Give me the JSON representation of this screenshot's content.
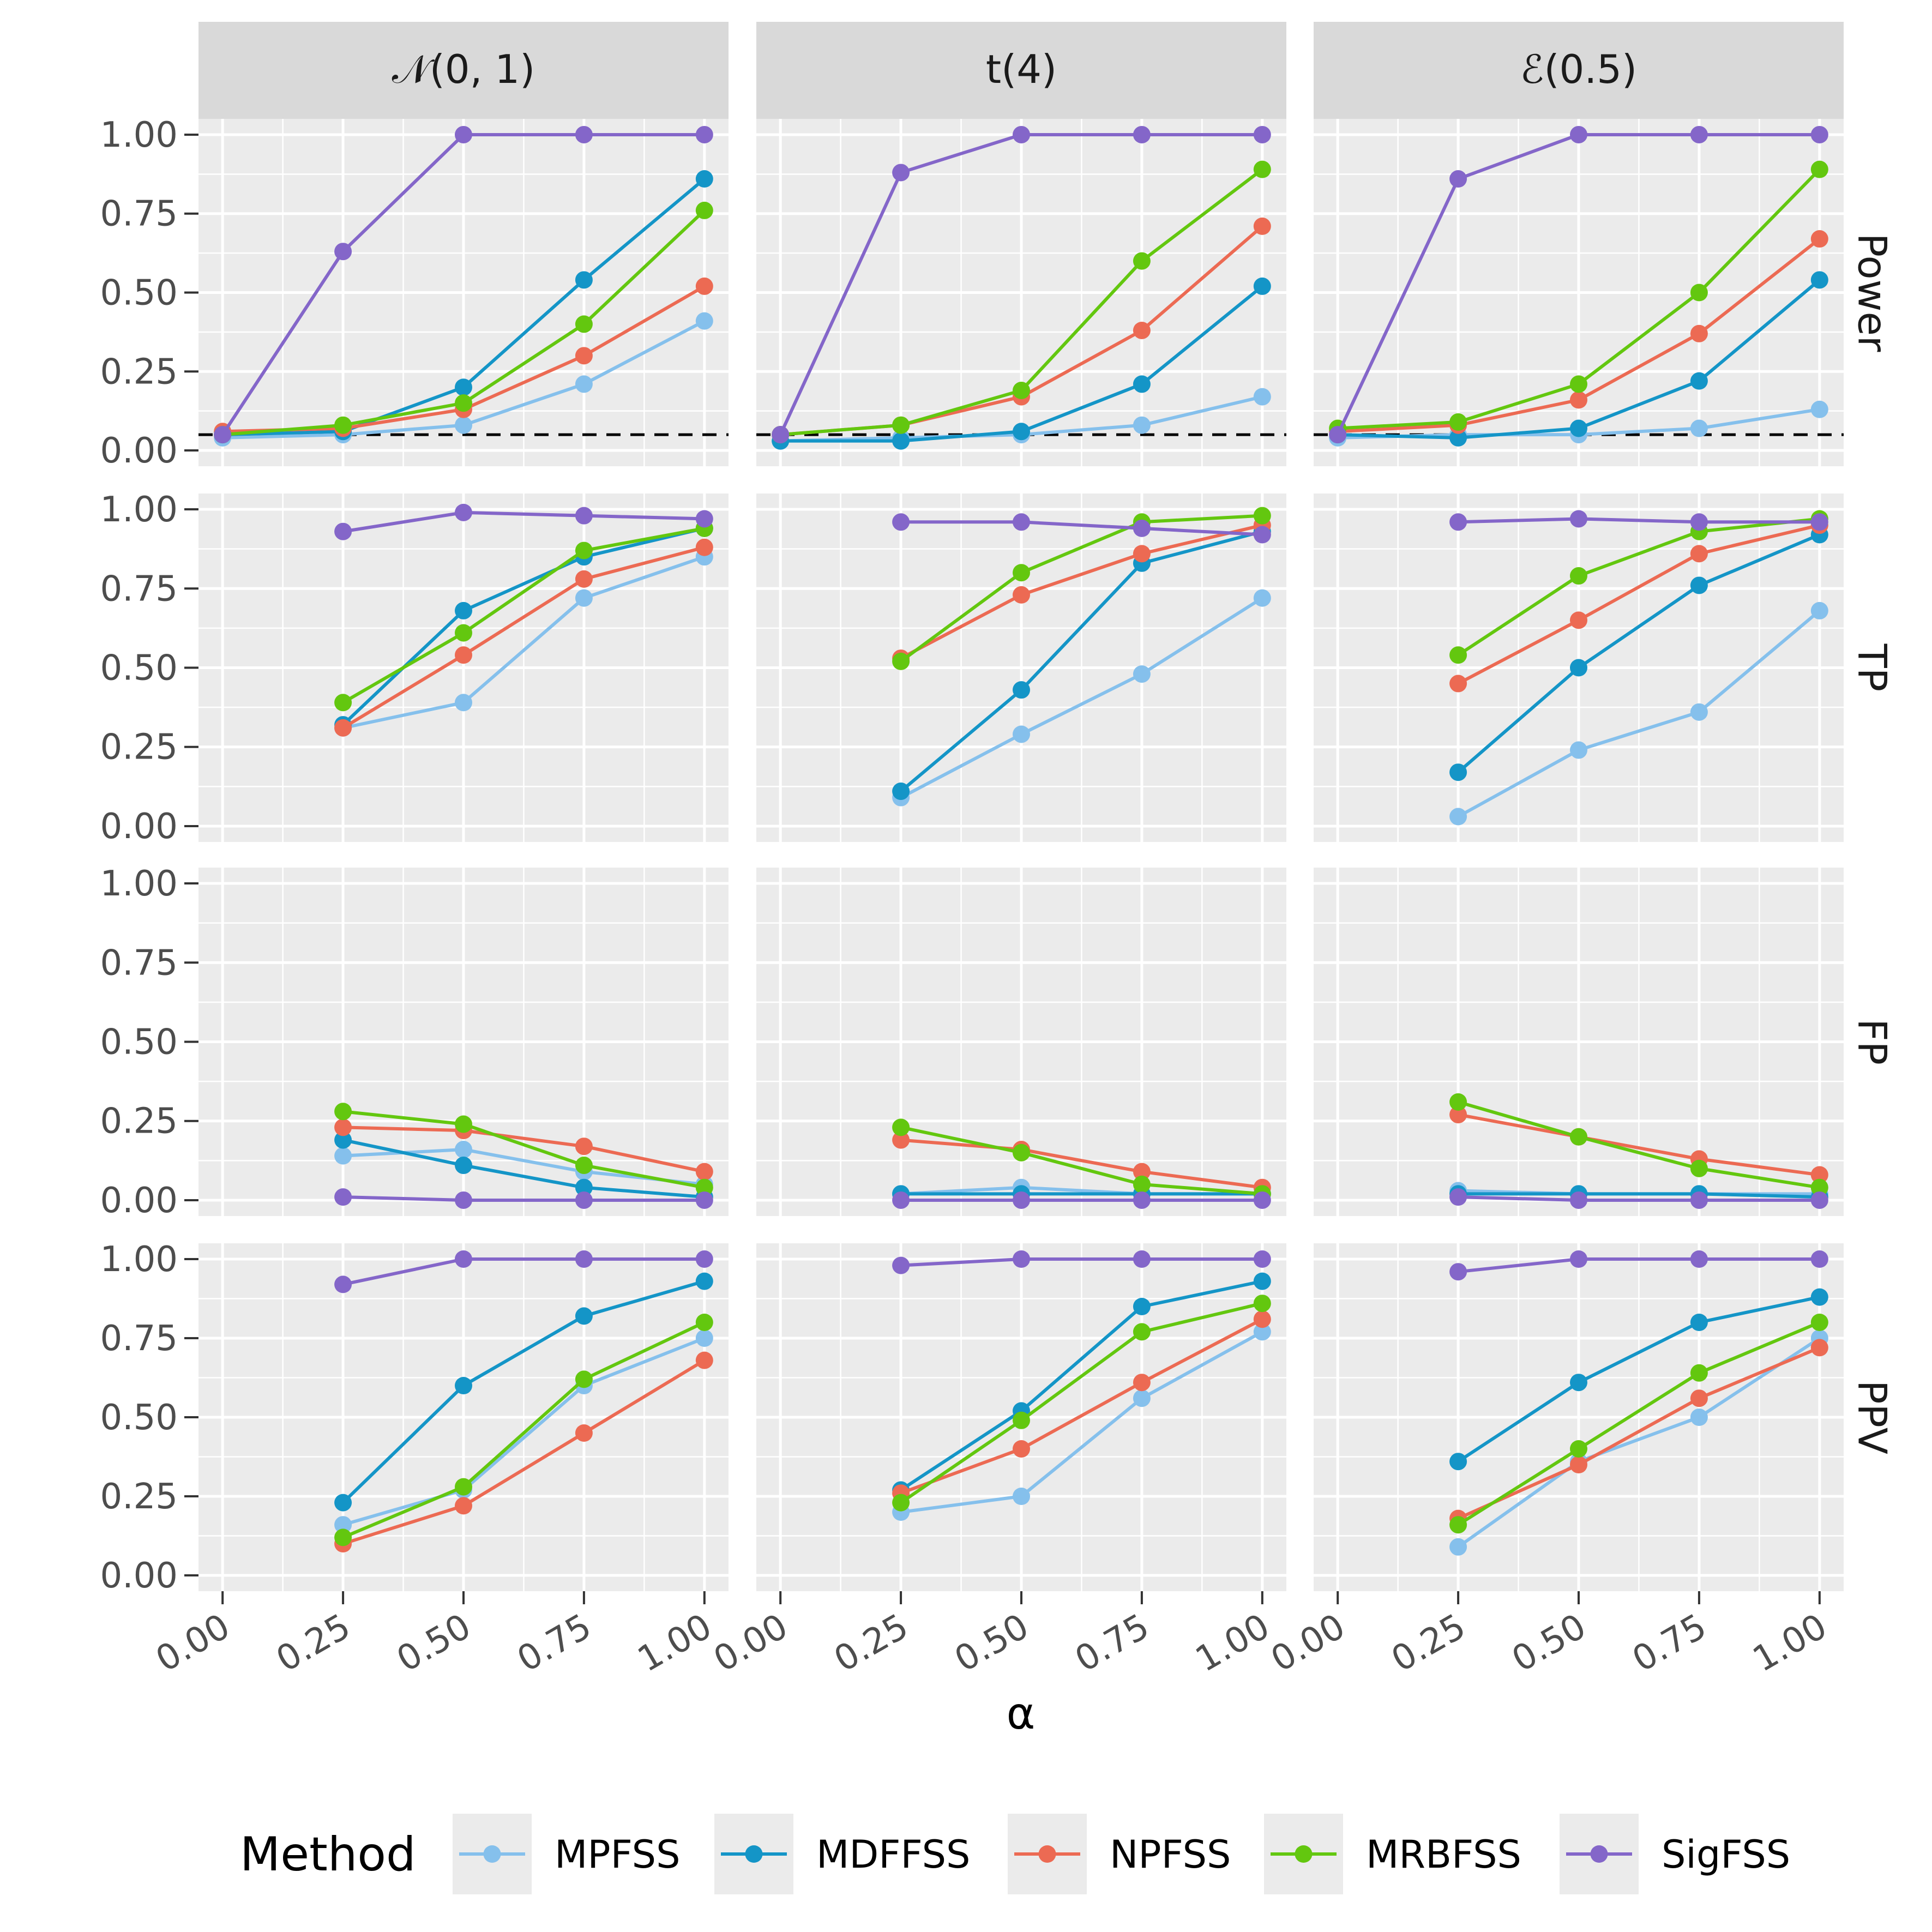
{
  "chart_data": {
    "type": "line",
    "xlabel": "α",
    "x": [
      0,
      0.25,
      0.5,
      0.75,
      1
    ],
    "x_tick_labels": [
      "0.00",
      "0.25",
      "0.50",
      "0.75",
      "1.00"
    ],
    "y_tick_labels": [
      "0.00",
      "0.25",
      "0.50",
      "0.75",
      "1.00"
    ],
    "xlim": [
      -0.05,
      1.05
    ],
    "ylim": [
      -0.05,
      1.05
    ],
    "grid": true,
    "legend_position": "bottom",
    "legend_title": "Method",
    "reference_line": {
      "metric": "Power",
      "y": 0.05,
      "style": "dashed",
      "color": "#000000"
    },
    "columns": [
      "𝒩(0, 1)",
      "t(4)",
      "ℰ(0.5)"
    ],
    "rows": [
      "Power",
      "TP",
      "FP",
      "PPV"
    ],
    "methods": [
      {
        "name": "MPFSS",
        "color": "#85C0EC"
      },
      {
        "name": "MDFFSS",
        "color": "#1495C7"
      },
      {
        "name": "NPFSS",
        "color": "#EC6A53"
      },
      {
        "name": "MRBFSS",
        "color": "#63C70F"
      },
      {
        "name": "SigFSS",
        "color": "#8466C9"
      }
    ],
    "panels": [
      {
        "column": 0,
        "row": "Power",
        "series": [
          {
            "name": "MPFSS",
            "values": [
              0.04,
              0.05,
              0.08,
              0.21,
              0.41
            ]
          },
          {
            "name": "MDFFSS",
            "values": [
              0.05,
              0.06,
              0.2,
              0.54,
              0.86
            ]
          },
          {
            "name": "NPFSS",
            "values": [
              0.06,
              0.07,
              0.13,
              0.3,
              0.52
            ]
          },
          {
            "name": "MRBFSS",
            "values": [
              0.05,
              0.08,
              0.15,
              0.4,
              0.76
            ]
          },
          {
            "name": "SigFSS",
            "values": [
              0.05,
              0.63,
              1.0,
              1.0,
              1.0
            ]
          }
        ]
      },
      {
        "column": 1,
        "row": "Power",
        "series": [
          {
            "name": "MPFSS",
            "values": [
              0.03,
              0.04,
              0.05,
              0.08,
              0.17
            ]
          },
          {
            "name": "MDFFSS",
            "values": [
              0.03,
              0.03,
              0.06,
              0.21,
              0.52
            ]
          },
          {
            "name": "NPFSS",
            "values": [
              0.05,
              0.08,
              0.17,
              0.38,
              0.71
            ]
          },
          {
            "name": "MRBFSS",
            "values": [
              0.05,
              0.08,
              0.19,
              0.6,
              0.89
            ]
          },
          {
            "name": "SigFSS",
            "values": [
              0.05,
              0.88,
              1.0,
              1.0,
              1.0
            ]
          }
        ]
      },
      {
        "column": 2,
        "row": "Power",
        "series": [
          {
            "name": "MPFSS",
            "values": [
              0.04,
              0.05,
              0.05,
              0.07,
              0.13
            ]
          },
          {
            "name": "MDFFSS",
            "values": [
              0.05,
              0.04,
              0.07,
              0.22,
              0.54
            ]
          },
          {
            "name": "NPFSS",
            "values": [
              0.06,
              0.08,
              0.16,
              0.37,
              0.67
            ]
          },
          {
            "name": "MRBFSS",
            "values": [
              0.07,
              0.09,
              0.21,
              0.5,
              0.89
            ]
          },
          {
            "name": "SigFSS",
            "values": [
              0.05,
              0.86,
              1.0,
              1.0,
              1.0
            ]
          }
        ]
      },
      {
        "column": 0,
        "row": "TP",
        "series": [
          {
            "name": "MPFSS",
            "values": [
              null,
              0.31,
              0.39,
              0.72,
              0.85
            ]
          },
          {
            "name": "MDFFSS",
            "values": [
              null,
              0.32,
              0.68,
              0.85,
              0.94
            ]
          },
          {
            "name": "NPFSS",
            "values": [
              null,
              0.31,
              0.54,
              0.78,
              0.88
            ]
          },
          {
            "name": "MRBFSS",
            "values": [
              null,
              0.39,
              0.61,
              0.87,
              0.94
            ]
          },
          {
            "name": "SigFSS",
            "values": [
              null,
              0.93,
              0.99,
              0.98,
              0.97
            ]
          }
        ]
      },
      {
        "column": 1,
        "row": "TP",
        "series": [
          {
            "name": "MPFSS",
            "values": [
              null,
              0.09,
              0.29,
              0.48,
              0.72
            ]
          },
          {
            "name": "MDFFSS",
            "values": [
              null,
              0.11,
              0.43,
              0.83,
              0.93
            ]
          },
          {
            "name": "NPFSS",
            "values": [
              null,
              0.53,
              0.73,
              0.86,
              0.95
            ]
          },
          {
            "name": "MRBFSS",
            "values": [
              null,
              0.52,
              0.8,
              0.96,
              0.98
            ]
          },
          {
            "name": "SigFSS",
            "values": [
              null,
              0.96,
              0.96,
              0.94,
              0.92
            ]
          }
        ]
      },
      {
        "column": 2,
        "row": "TP",
        "series": [
          {
            "name": "MPFSS",
            "values": [
              null,
              0.03,
              0.24,
              0.36,
              0.68
            ]
          },
          {
            "name": "MDFFSS",
            "values": [
              null,
              0.17,
              0.5,
              0.76,
              0.92
            ]
          },
          {
            "name": "NPFSS",
            "values": [
              null,
              0.45,
              0.65,
              0.86,
              0.95
            ]
          },
          {
            "name": "MRBFSS",
            "values": [
              null,
              0.54,
              0.79,
              0.93,
              0.97
            ]
          },
          {
            "name": "SigFSS",
            "values": [
              null,
              0.96,
              0.97,
              0.96,
              0.96
            ]
          }
        ]
      },
      {
        "column": 0,
        "row": "FP",
        "series": [
          {
            "name": "MPFSS",
            "values": [
              null,
              0.14,
              0.16,
              0.09,
              0.05
            ]
          },
          {
            "name": "MDFFSS",
            "values": [
              null,
              0.19,
              0.11,
              0.04,
              0.01
            ]
          },
          {
            "name": "NPFSS",
            "values": [
              null,
              0.23,
              0.22,
              0.17,
              0.09
            ]
          },
          {
            "name": "MRBFSS",
            "values": [
              null,
              0.28,
              0.24,
              0.11,
              0.04
            ]
          },
          {
            "name": "SigFSS",
            "values": [
              null,
              0.01,
              0.0,
              0.0,
              0.0
            ]
          }
        ]
      },
      {
        "column": 1,
        "row": "FP",
        "series": [
          {
            "name": "MPFSS",
            "values": [
              null,
              0.02,
              0.04,
              0.02,
              0.02
            ]
          },
          {
            "name": "MDFFSS",
            "values": [
              null,
              0.02,
              0.02,
              0.02,
              0.02
            ]
          },
          {
            "name": "NPFSS",
            "values": [
              null,
              0.19,
              0.16,
              0.09,
              0.04
            ]
          },
          {
            "name": "MRBFSS",
            "values": [
              null,
              0.23,
              0.15,
              0.05,
              0.02
            ]
          },
          {
            "name": "SigFSS",
            "values": [
              null,
              0.0,
              0.0,
              0.0,
              0.0
            ]
          }
        ]
      },
      {
        "column": 2,
        "row": "FP",
        "series": [
          {
            "name": "MPFSS",
            "values": [
              null,
              0.03,
              0.02,
              0.02,
              0.02
            ]
          },
          {
            "name": "MDFFSS",
            "values": [
              null,
              0.02,
              0.02,
              0.02,
              0.01
            ]
          },
          {
            "name": "NPFSS",
            "values": [
              null,
              0.27,
              0.2,
              0.13,
              0.08
            ]
          },
          {
            "name": "MRBFSS",
            "values": [
              null,
              0.31,
              0.2,
              0.1,
              0.04
            ]
          },
          {
            "name": "SigFSS",
            "values": [
              null,
              0.01,
              0.0,
              0.0,
              0.0
            ]
          }
        ]
      },
      {
        "column": 0,
        "row": "PPV",
        "series": [
          {
            "name": "MPFSS",
            "values": [
              null,
              0.16,
              0.27,
              0.6,
              0.75
            ]
          },
          {
            "name": "MDFFSS",
            "values": [
              null,
              0.23,
              0.6,
              0.82,
              0.93
            ]
          },
          {
            "name": "NPFSS",
            "values": [
              null,
              0.1,
              0.22,
              0.45,
              0.68
            ]
          },
          {
            "name": "MRBFSS",
            "values": [
              null,
              0.12,
              0.28,
              0.62,
              0.8
            ]
          },
          {
            "name": "SigFSS",
            "values": [
              null,
              0.92,
              1.0,
              1.0,
              1.0
            ]
          }
        ]
      },
      {
        "column": 1,
        "row": "PPV",
        "series": [
          {
            "name": "MPFSS",
            "values": [
              null,
              0.2,
              0.25,
              0.56,
              0.77
            ]
          },
          {
            "name": "MDFFSS",
            "values": [
              null,
              0.27,
              0.52,
              0.85,
              0.93
            ]
          },
          {
            "name": "NPFSS",
            "values": [
              null,
              0.26,
              0.4,
              0.61,
              0.81
            ]
          },
          {
            "name": "MRBFSS",
            "values": [
              null,
              0.23,
              0.49,
              0.77,
              0.86
            ]
          },
          {
            "name": "SigFSS",
            "values": [
              null,
              0.98,
              1.0,
              1.0,
              1.0
            ]
          }
        ]
      },
      {
        "column": 2,
        "row": "PPV",
        "series": [
          {
            "name": "MPFSS",
            "values": [
              null,
              0.09,
              0.36,
              0.5,
              0.75
            ]
          },
          {
            "name": "MDFFSS",
            "values": [
              null,
              0.36,
              0.61,
              0.8,
              0.88
            ]
          },
          {
            "name": "NPFSS",
            "values": [
              null,
              0.18,
              0.35,
              0.56,
              0.72
            ]
          },
          {
            "name": "MRBFSS",
            "values": [
              null,
              0.16,
              0.4,
              0.64,
              0.8
            ]
          },
          {
            "name": "SigFSS",
            "values": [
              null,
              0.96,
              1.0,
              1.0,
              1.0
            ]
          }
        ]
      }
    ]
  }
}
